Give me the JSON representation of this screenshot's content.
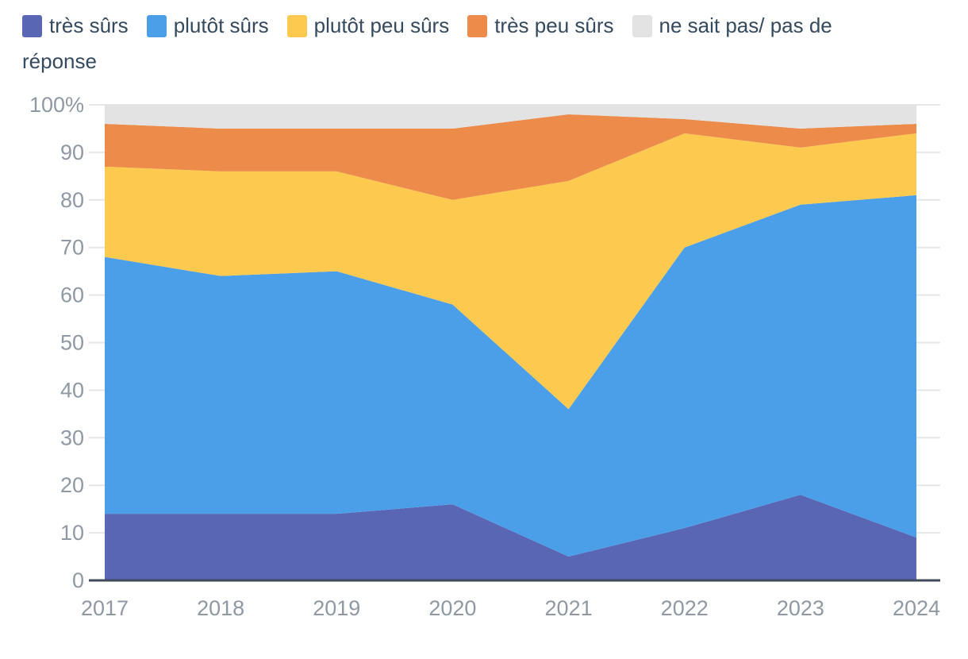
{
  "chart_data": {
    "type": "area",
    "stacked": true,
    "unit": "%",
    "x": [
      "2017",
      "2018",
      "2019",
      "2020",
      "2021",
      "2022",
      "2023",
      "2024"
    ],
    "series": [
      {
        "name": "très sûrs",
        "color": "#5866B3",
        "values": [
          14,
          14,
          14,
          16,
          5,
          11,
          18,
          9
        ]
      },
      {
        "name": "plutôt sûrs",
        "color": "#4A9FE8",
        "values": [
          54,
          50,
          51,
          42,
          31,
          59,
          61,
          72
        ]
      },
      {
        "name": "plutôt peu sûrs",
        "color": "#FDC94F",
        "values": [
          19,
          22,
          21,
          22,
          48,
          24,
          12,
          13
        ]
      },
      {
        "name": "très peu sûrs",
        "color": "#EC8B4A",
        "values": [
          9,
          9,
          9,
          15,
          14,
          3,
          4,
          2
        ]
      },
      {
        "name": "ne sait pas/ pas de réponse",
        "color": "#E3E3E3",
        "values": [
          4,
          5,
          5,
          5,
          2,
          3,
          5,
          4
        ]
      }
    ],
    "ylim": [
      0,
      100
    ],
    "yticks": {
      "values": [
        0,
        10,
        20,
        30,
        40,
        50,
        60,
        70,
        80,
        90,
        100
      ],
      "labels": [
        "0",
        "10",
        "20",
        "30",
        "40",
        "50",
        "60",
        "70",
        "80",
        "90",
        "100%"
      ]
    },
    "grid": true,
    "legend_position": "top"
  },
  "style": {
    "legend_text_color": "#344A5E",
    "axis_label_color": "#8F99A5",
    "axis_line_color": "#3F4A5A",
    "gridline_color": "#E6E6E6",
    "background": "#FFFFFF"
  }
}
